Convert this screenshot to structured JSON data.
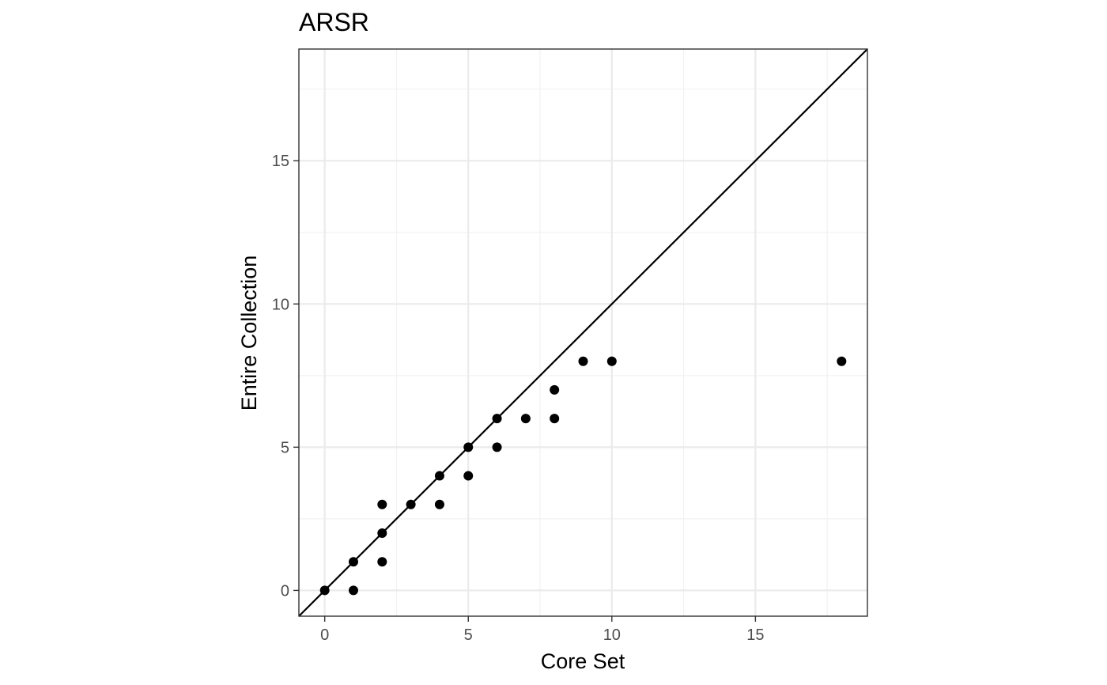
{
  "chart_data": {
    "type": "scatter",
    "title": "ARSR",
    "xlabel": "Core Set",
    "ylabel": "Entire Collection",
    "xlim": [
      -0.9,
      18.9
    ],
    "ylim": [
      -0.9,
      18.9
    ],
    "x_ticks": [
      0,
      5,
      10,
      15
    ],
    "y_ticks": [
      0,
      5,
      10,
      15
    ],
    "x_tick_labels": [
      "0",
      "5",
      "10",
      "15"
    ],
    "y_tick_labels": [
      "0",
      "5",
      "10",
      "15"
    ],
    "grid": true,
    "reference_line": {
      "slope": 1,
      "intercept": 0
    },
    "colors": {
      "points": "#000000",
      "line": "#000000",
      "grid_major": "#ebebeb",
      "grid_minor": "#f2f2f2",
      "panel_border": "#333333"
    },
    "points": [
      [
        0,
        0
      ],
      [
        1,
        0
      ],
      [
        1,
        1
      ],
      [
        2,
        1
      ],
      [
        2,
        2
      ],
      [
        2,
        3
      ],
      [
        3,
        3
      ],
      [
        4,
        3
      ],
      [
        4,
        4
      ],
      [
        5,
        4
      ],
      [
        5,
        5
      ],
      [
        6,
        5
      ],
      [
        6,
        6
      ],
      [
        7,
        6
      ],
      [
        8,
        6
      ],
      [
        8,
        7
      ],
      [
        9,
        8
      ],
      [
        10,
        8
      ],
      [
        18,
        8
      ]
    ]
  }
}
